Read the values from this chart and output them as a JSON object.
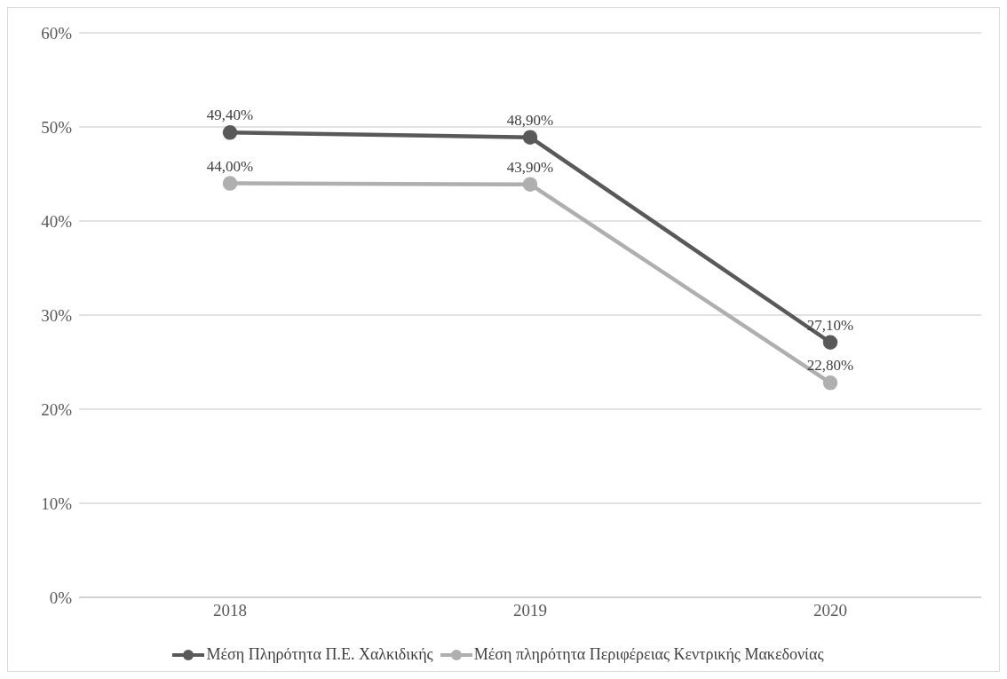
{
  "chart_data": {
    "type": "line",
    "categories": [
      "2018",
      "2019",
      "2020"
    ],
    "series": [
      {
        "name": "Μέση Πληρότητα Π.Ε. Χαλκιδικής",
        "color": "#595959",
        "values": [
          49.4,
          48.9,
          27.1
        ],
        "value_labels": [
          "49,40%",
          "48,90%",
          "27,10%"
        ]
      },
      {
        "name": "Μέση πληρότητα Περιφέρειας Κεντρικής Μακεδονίας",
        "color": "#afafaf",
        "values": [
          44.0,
          43.9,
          22.8
        ],
        "value_labels": [
          "44,00%",
          "43,90%",
          "22,80%"
        ]
      }
    ],
    "ylim": [
      0,
      60
    ],
    "yticks": [
      {
        "value": 0,
        "label": "0%"
      },
      {
        "value": 10,
        "label": "10%"
      },
      {
        "value": 20,
        "label": "20%"
      },
      {
        "value": 30,
        "label": "30%"
      },
      {
        "value": 40,
        "label": "40%"
      },
      {
        "value": 50,
        "label": "50%"
      },
      {
        "value": 60,
        "label": "60%"
      }
    ],
    "grid": "y",
    "legend": "bottom",
    "marker": "circle",
    "line_style": "solid"
  }
}
